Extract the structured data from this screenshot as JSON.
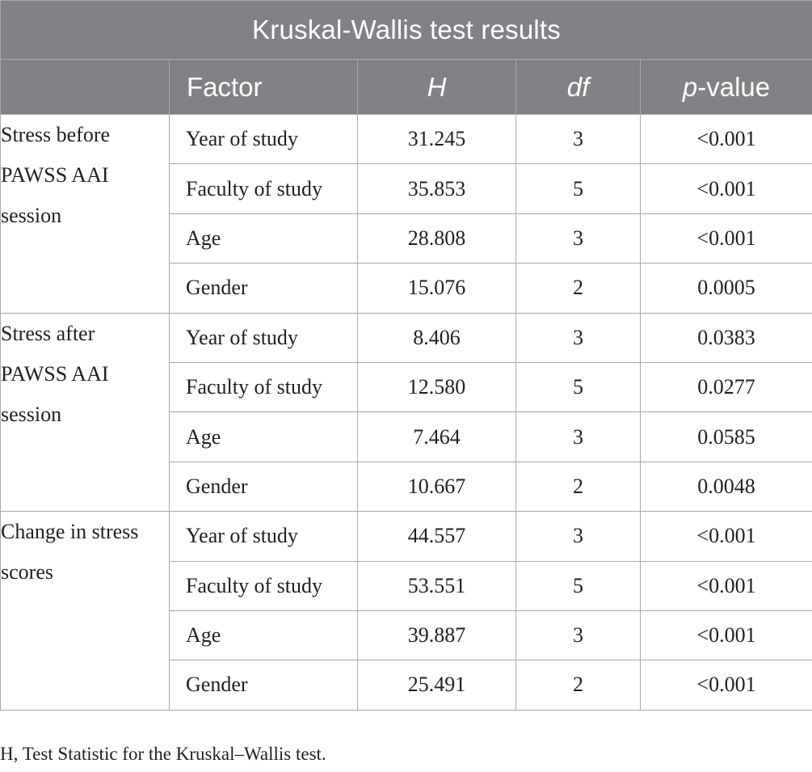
{
  "table": {
    "title": "Kruskal-Wallis test results",
    "columns": {
      "factor": "Factor",
      "h_label": "H",
      "df_label": "df",
      "p_italic": "p",
      "p_rest": "-value"
    },
    "groups": [
      {
        "label": "Stress before PAWSS AAI session",
        "rows": [
          {
            "factor": "Year of study",
            "h": "31.245",
            "df": "3",
            "p": "<0.001"
          },
          {
            "factor": "Faculty of study",
            "h": "35.853",
            "df": "5",
            "p": "<0.001"
          },
          {
            "factor": "Age",
            "h": "28.808",
            "df": "3",
            "p": "<0.001"
          },
          {
            "factor": "Gender",
            "h": "15.076",
            "df": "2",
            "p": "0.0005"
          }
        ]
      },
      {
        "label": "Stress after PAWSS AAI session",
        "rows": [
          {
            "factor": "Year of study",
            "h": "8.406",
            "df": "3",
            "p": "0.0383"
          },
          {
            "factor": "Faculty of study",
            "h": "12.580",
            "df": "5",
            "p": "0.0277"
          },
          {
            "factor": "Age",
            "h": "7.464",
            "df": "3",
            "p": "0.0585"
          },
          {
            "factor": "Gender",
            "h": "10.667",
            "df": "2",
            "p": "0.0048"
          }
        ]
      },
      {
        "label": "Change in stress scores",
        "rows": [
          {
            "factor": "Year of study",
            "h": "44.557",
            "df": "3",
            "p": "<0.001"
          },
          {
            "factor": "Faculty of study",
            "h": "53.551",
            "df": "5",
            "p": "<0.001"
          },
          {
            "factor": "Age",
            "h": "39.887",
            "df": "3",
            "p": "<0.001"
          },
          {
            "factor": "Gender",
            "h": "25.491",
            "df": "2",
            "p": "<0.001"
          }
        ]
      }
    ]
  },
  "footnote": "H, Test Statistic for the Kruskal–Wallis test.",
  "colors": {
    "header_background": "#808285",
    "header_text": "#ffffff",
    "border": "#a7a9ac",
    "body_text": "#231f20"
  }
}
